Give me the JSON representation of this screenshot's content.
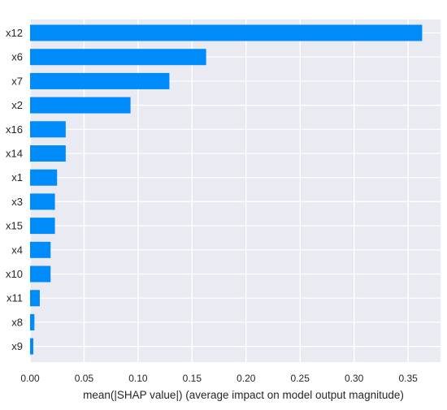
{
  "colors": {
    "background": "#ffffff",
    "plot_background": "#eaeaf2",
    "grid": "#ffffff",
    "bar": "#008bfb",
    "text": "#262626"
  },
  "chart_data": {
    "type": "bar",
    "orientation": "horizontal",
    "title": "",
    "xlabel": "mean(|SHAP value|) (average impact on model output magnitude)",
    "ylabel": "",
    "categories": [
      "x12",
      "x6",
      "x7",
      "x2",
      "x16",
      "x14",
      "x1",
      "x3",
      "x15",
      "x4",
      "x10",
      "x11",
      "x8",
      "x9"
    ],
    "values": [
      0.363,
      0.163,
      0.129,
      0.093,
      0.033,
      0.033,
      0.025,
      0.023,
      0.023,
      0.019,
      0.019,
      0.009,
      0.004,
      0.003
    ],
    "xlim": [
      0.0,
      0.38
    ],
    "xticks": [
      0.0,
      0.05,
      0.1,
      0.15,
      0.2,
      0.25,
      0.3,
      0.35
    ],
    "xtick_labels": [
      "0.00",
      "0.05",
      "0.10",
      "0.15",
      "0.20",
      "0.25",
      "0.30",
      "0.35"
    ],
    "grid": true
  }
}
